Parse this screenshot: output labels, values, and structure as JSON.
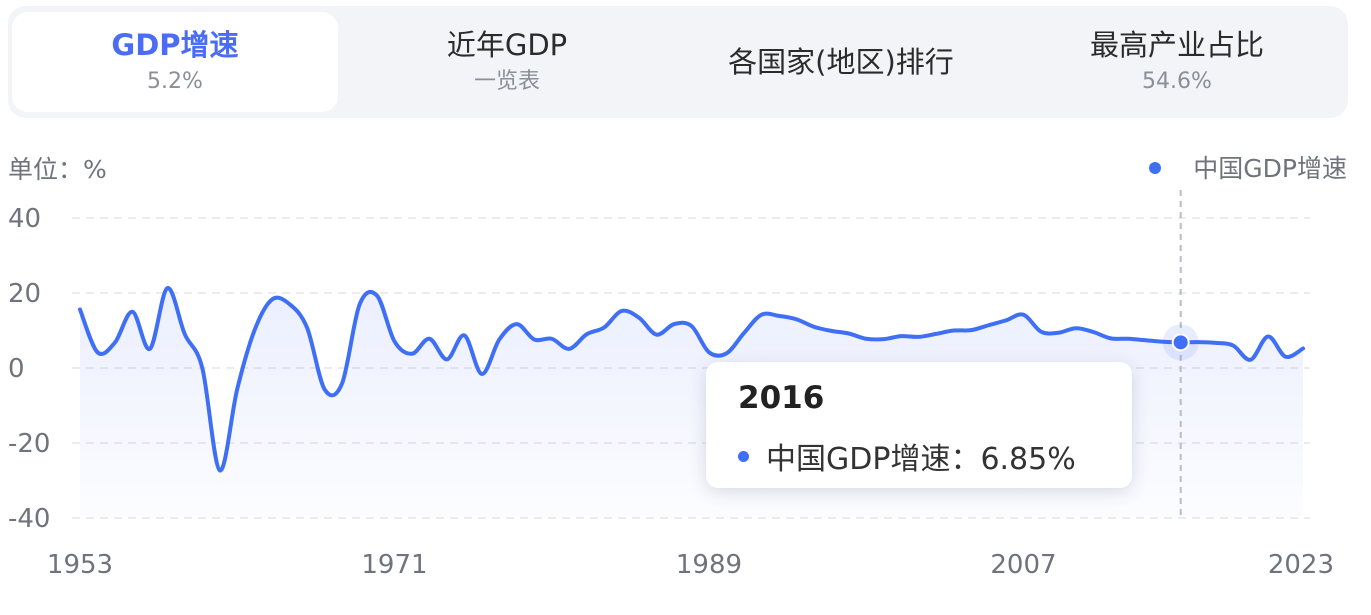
{
  "tabs": [
    {
      "title": "GDP增速",
      "sub": "5.2%",
      "active": true
    },
    {
      "title": "近年GDP",
      "sub": "一览表",
      "active": false
    },
    {
      "title": "各国家(地区)排行",
      "sub": "",
      "active": false
    },
    {
      "title": "最高产业占比",
      "sub": "54.6%",
      "active": false
    }
  ],
  "colors": {
    "accent": "#4a6cf7",
    "line": "#3e6ff5",
    "grid": "#e3e5ea"
  },
  "chart_data": {
    "type": "line",
    "unit_label": "单位：%",
    "legend": {
      "label": "中国GDP增速",
      "position": "top-right"
    },
    "ylim": [
      -40,
      40
    ],
    "yticks": [
      40,
      20,
      0,
      -20,
      -40
    ],
    "xlim": [
      1953,
      2023
    ],
    "xticks": [
      1953,
      1971,
      1989,
      2007,
      2023
    ],
    "grid": true,
    "series": [
      {
        "name": "中国GDP增速",
        "x": [
          1953,
          1954,
          1955,
          1956,
          1957,
          1958,
          1959,
          1960,
          1961,
          1962,
          1963,
          1964,
          1965,
          1966,
          1967,
          1968,
          1969,
          1970,
          1971,
          1972,
          1973,
          1974,
          1975,
          1976,
          1977,
          1978,
          1979,
          1980,
          1981,
          1982,
          1983,
          1984,
          1985,
          1986,
          1987,
          1988,
          1989,
          1990,
          1991,
          1992,
          1993,
          1994,
          1995,
          1996,
          1997,
          1998,
          1999,
          2000,
          2001,
          2002,
          2003,
          2004,
          2005,
          2006,
          2007,
          2008,
          2009,
          2010,
          2011,
          2012,
          2013,
          2014,
          2015,
          2016,
          2017,
          2018,
          2019,
          2020,
          2021,
          2022,
          2023
        ],
        "values": [
          15.6,
          4.2,
          6.8,
          15.0,
          5.1,
          21.3,
          9.0,
          0.0,
          -27.3,
          -5.6,
          10.2,
          18.3,
          17.0,
          10.7,
          -5.7,
          -4.1,
          16.9,
          19.3,
          7.1,
          3.8,
          7.8,
          2.3,
          8.7,
          -1.6,
          7.6,
          11.7,
          7.6,
          7.8,
          5.1,
          9.0,
          10.8,
          15.2,
          13.4,
          8.9,
          11.7,
          11.2,
          4.2,
          3.9,
          9.3,
          14.2,
          13.9,
          13.0,
          11.0,
          9.9,
          9.2,
          7.8,
          7.7,
          8.5,
          8.3,
          9.1,
          10.0,
          10.1,
          11.4,
          12.7,
          14.2,
          9.7,
          9.4,
          10.6,
          9.6,
          7.9,
          7.8,
          7.4,
          7.0,
          6.85,
          6.9,
          6.7,
          6.0,
          2.2,
          8.4,
          3.0,
          5.2
        ]
      }
    ],
    "highlight": {
      "x": 2016,
      "value": 6.85
    },
    "tooltip": {
      "title": "2016",
      "label": "中国GDP增速：6.85%"
    }
  }
}
